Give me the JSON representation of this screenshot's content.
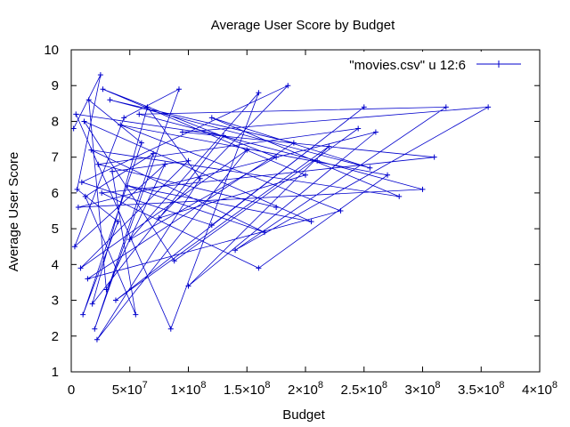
{
  "chart_data": {
    "type": "line",
    "title": "Average User Score by Budget",
    "xlabel": "Budget",
    "ylabel": "Average User Score",
    "xlim": [
      0,
      400000000
    ],
    "ylim": [
      1,
      10
    ],
    "x_ticks": [
      {
        "value": 0,
        "mant": "0",
        "exp": ""
      },
      {
        "value": 50000000,
        "mant": "5×10",
        "exp": "7"
      },
      {
        "value": 100000000,
        "mant": "1×10",
        "exp": "8"
      },
      {
        "value": 150000000,
        "mant": "1.5×10",
        "exp": "8"
      },
      {
        "value": 200000000,
        "mant": "2×10",
        "exp": "8"
      },
      {
        "value": 250000000,
        "mant": "2.5×10",
        "exp": "8"
      },
      {
        "value": 300000000,
        "mant": "3×10",
        "exp": "8"
      },
      {
        "value": 350000000,
        "mant": "3.5×10",
        "exp": "8"
      },
      {
        "value": 400000000,
        "mant": "4×10",
        "exp": "8"
      }
    ],
    "y_ticks": [
      1,
      2,
      3,
      4,
      5,
      6,
      7,
      8,
      9,
      10
    ],
    "legend_position": "top-right",
    "grid": false,
    "series": [
      {
        "name": "\"movies.csv\" u 12:6",
        "color": "#0000cc",
        "marker": "+",
        "points": [
          [
            2000000,
            7.8
          ],
          [
            25000000,
            9.3
          ],
          [
            5000000,
            6.1
          ],
          [
            40000000,
            5.2
          ],
          [
            10000000,
            2.6
          ],
          [
            60000000,
            7.4
          ],
          [
            15000000,
            8.6
          ],
          [
            30000000,
            3.3
          ],
          [
            80000000,
            6.8
          ],
          [
            3000000,
            4.5
          ],
          [
            45000000,
            8.1
          ],
          [
            92000000,
            8.9
          ],
          [
            20000000,
            2.2
          ],
          [
            70000000,
            7.1
          ],
          [
            12000000,
            5.9
          ],
          [
            55000000,
            2.6
          ],
          [
            35000000,
            6.6
          ],
          [
            100000000,
            6.9
          ],
          [
            8000000,
            3.9
          ],
          [
            150000000,
            7.2
          ],
          [
            22000000,
            1.9
          ],
          [
            110000000,
            6.4
          ],
          [
            65000000,
            8.4
          ],
          [
            18000000,
            2.9
          ],
          [
            130000000,
            7.6
          ],
          [
            4000000,
            8.2
          ],
          [
            85000000,
            2.2
          ],
          [
            160000000,
            8.8
          ],
          [
            50000000,
            4.7
          ],
          [
            175000000,
            7.0
          ],
          [
            27000000,
            8.9
          ],
          [
            200000000,
            6.5
          ],
          [
            75000000,
            5.3
          ],
          [
            185000000,
            9.0
          ],
          [
            9000000,
            6.3
          ],
          [
            120000000,
            5.1
          ],
          [
            250000000,
            8.4
          ],
          [
            38000000,
            3.0
          ],
          [
            220000000,
            7.3
          ],
          [
            100000000,
            3.4
          ],
          [
            260000000,
            7.7
          ],
          [
            6000000,
            5.6
          ],
          [
            300000000,
            6.1
          ],
          [
            210000000,
            6.9
          ],
          [
            58000000,
            8.2
          ],
          [
            320000000,
            8.4
          ],
          [
            140000000,
            4.4
          ],
          [
            356000000,
            8.4
          ],
          [
            95000000,
            7.7
          ],
          [
            310000000,
            7.0
          ],
          [
            26000000,
            6.0
          ],
          [
            160000000,
            3.9
          ],
          [
            270000000,
            6.5
          ],
          [
            42000000,
            7.9
          ],
          [
            230000000,
            5.5
          ],
          [
            14000000,
            3.6
          ],
          [
            190000000,
            7.4
          ],
          [
            33000000,
            8.6
          ],
          [
            255000000,
            6.7
          ],
          [
            120000000,
            8.1
          ],
          [
            280000000,
            5.9
          ],
          [
            17000000,
            7.2
          ],
          [
            165000000,
            4.9
          ],
          [
            48000000,
            6.2
          ],
          [
            205000000,
            5.2
          ],
          [
            11000000,
            8.0
          ],
          [
            88000000,
            4.1
          ],
          [
            245000000,
            7.8
          ],
          [
            23000000,
            6.8
          ],
          [
            175000000,
            5.6
          ]
        ]
      }
    ]
  }
}
